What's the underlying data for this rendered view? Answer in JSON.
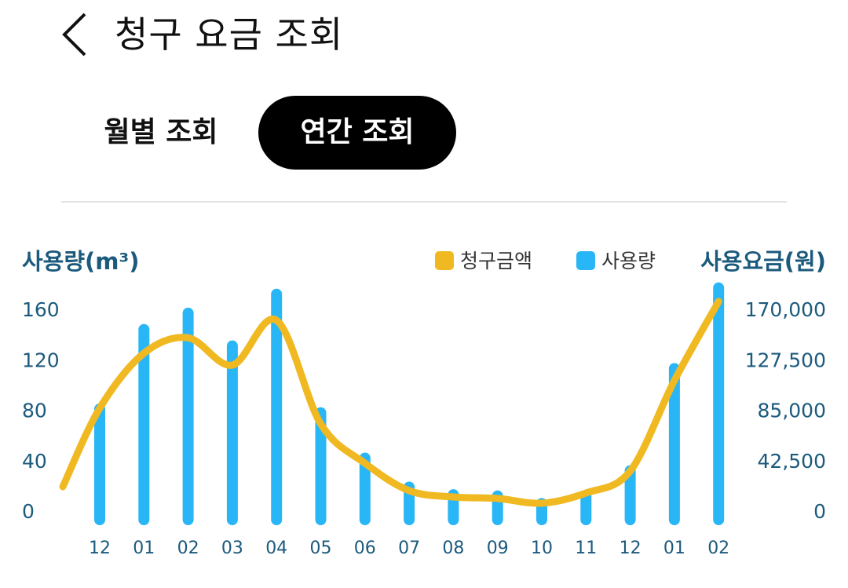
{
  "header": {
    "title": "청구 요금 조회",
    "back_icon": "chevron-left-icon"
  },
  "tabs": [
    {
      "label": "월별 조회",
      "active": false
    },
    {
      "label": "연간 조회",
      "active": true
    }
  ],
  "chart_data": {
    "type": "bar+line",
    "categories": [
      "12",
      "01",
      "02",
      "03",
      "04",
      "05",
      "06",
      "07",
      "08",
      "09",
      "10",
      "11",
      "12",
      "01",
      "02"
    ],
    "series": [
      {
        "name": "사용량",
        "type": "bar",
        "axis": "left",
        "color": "#29B6F6",
        "values": [
          81,
          144,
          157,
          131,
          172,
          78,
          42,
          19,
          13,
          12,
          6,
          12,
          32,
          113,
          177
        ]
      },
      {
        "name": "청구금액",
        "type": "line",
        "axis": "right",
        "color": "#F0B921",
        "values": [
          86700,
          133000,
          146000,
          123000,
          160700,
          73400,
          40300,
          17200,
          11900,
          10600,
          6600,
          15200,
          33700,
          110000,
          176600
        ]
      }
    ],
    "left_axis": {
      "label": "사용량(m³)",
      "ticks": [
        "0",
        "40",
        "80",
        "120",
        "160"
      ],
      "range": [
        0,
        160
      ]
    },
    "right_axis": {
      "label": "사용요금(원)",
      "ticks": [
        "0",
        "42,500",
        "85,000",
        "127,500",
        "170,000"
      ],
      "range": [
        0,
        170000
      ]
    },
    "legend": [
      {
        "label": "청구금액",
        "color": "#F0B921"
      },
      {
        "label": "사용량",
        "color": "#29B6F6"
      }
    ],
    "legend_position": "top-right",
    "grid": false
  }
}
